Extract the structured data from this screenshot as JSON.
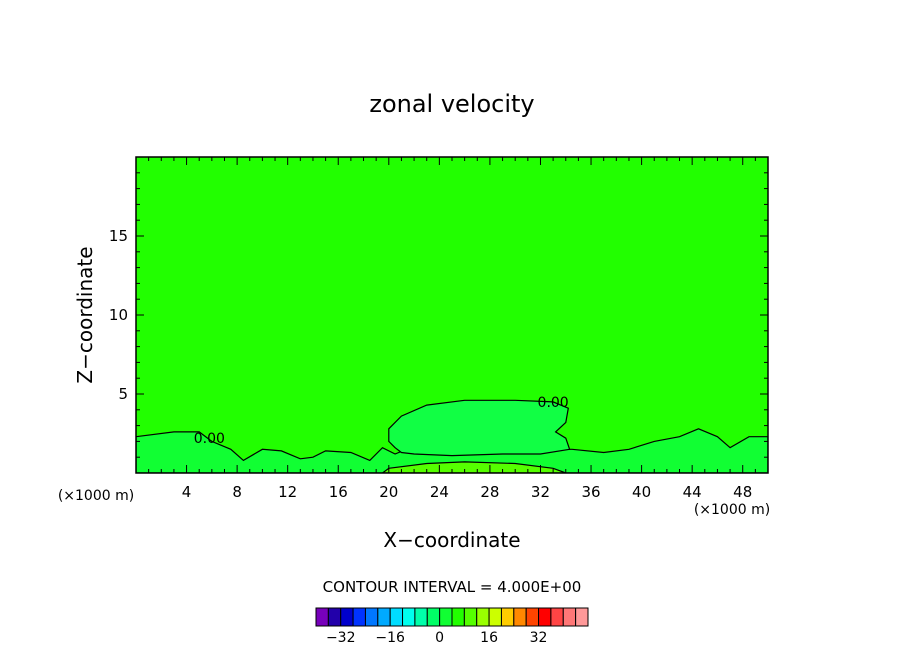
{
  "chart_data": {
    "type": "contour",
    "title": "zonal velocity",
    "xlabel": "X−coordinate",
    "ylabel": "Z−coordinate",
    "x_unit_left": "(×1000 m)",
    "x_unit_right": "(×1000 m)",
    "xlim": [
      0,
      50
    ],
    "ylim": [
      0,
      20
    ],
    "x_ticks": [
      4,
      8,
      12,
      16,
      20,
      24,
      28,
      32,
      36,
      40,
      44,
      48
    ],
    "y_ticks": [
      5,
      10,
      15
    ],
    "background_color": "#22ff00",
    "contour_labels": [
      {
        "text": "0.00",
        "x": 33.0,
        "z": 4.5
      },
      {
        "text": "0.00",
        "x": 5.8,
        "z": 2.2
      }
    ],
    "regions": [
      {
        "name": "near-zero-low-level",
        "color": "#11ff33",
        "points": [
          [
            0,
            0
          ],
          [
            0,
            2.3
          ],
          [
            3,
            2.6
          ],
          [
            5,
            2.6
          ],
          [
            6,
            2.0
          ],
          [
            7.5,
            1.5
          ],
          [
            8.5,
            0.8
          ],
          [
            10,
            1.5
          ],
          [
            11.5,
            1.4
          ],
          [
            13,
            0.9
          ],
          [
            14,
            1.0
          ],
          [
            15,
            1.4
          ],
          [
            17,
            1.3
          ],
          [
            18.5,
            0.8
          ],
          [
            19.5,
            1.6
          ],
          [
            20.5,
            1.2
          ],
          [
            22,
            1.7
          ],
          [
            25,
            1.5
          ],
          [
            29,
            1.8
          ],
          [
            32,
            1.7
          ],
          [
            33,
            1.5
          ],
          [
            34.5,
            1.5
          ],
          [
            37,
            1.3
          ],
          [
            39,
            1.5
          ],
          [
            41,
            2.0
          ],
          [
            43,
            2.3
          ],
          [
            44.5,
            2.8
          ],
          [
            46,
            2.3
          ],
          [
            47,
            1.6
          ],
          [
            48.5,
            2.3
          ],
          [
            50,
            2.3
          ],
          [
            50,
            0
          ]
        ]
      },
      {
        "name": "weak-negative-bubble",
        "color": "#11ff44",
        "points": [
          [
            20.5,
            1.6
          ],
          [
            20,
            2.0
          ],
          [
            20,
            2.8
          ],
          [
            21,
            3.6
          ],
          [
            23,
            4.3
          ],
          [
            26,
            4.6
          ],
          [
            30,
            4.6
          ],
          [
            33,
            4.5
          ],
          [
            34.2,
            4.1
          ],
          [
            34,
            3.2
          ],
          [
            33.2,
            2.6
          ],
          [
            34.0,
            2.2
          ],
          [
            34.3,
            1.5
          ],
          [
            32,
            1.2
          ],
          [
            29,
            1.2
          ],
          [
            25,
            1.1
          ],
          [
            22,
            1.2
          ],
          [
            21,
            1.3
          ]
        ]
      },
      {
        "name": "weak-positive-surface",
        "color": "#55ff00",
        "points": [
          [
            19.5,
            0
          ],
          [
            20,
            0.3
          ],
          [
            23,
            0.6
          ],
          [
            26,
            0.7
          ],
          [
            30,
            0.6
          ],
          [
            33,
            0.3
          ],
          [
            34,
            0
          ]
        ]
      }
    ],
    "colorbar": {
      "title": "CONTOUR INTERVAL = 4.000E+00",
      "colors": [
        "#7700bb",
        "#2200aa",
        "#0000cc",
        "#0033ff",
        "#0077ff",
        "#00aaff",
        "#00ddff",
        "#00ffee",
        "#00ffaa",
        "#00ff66",
        "#11ff33",
        "#22ff00",
        "#55ff00",
        "#99ff00",
        "#ccff00",
        "#ffcc00",
        "#ff8800",
        "#ff4400",
        "#ff0000",
        "#ff4444",
        "#ff7777",
        "#ff9999"
      ],
      "ticks": [
        "−32",
        "−16",
        "0",
        "16",
        "32"
      ]
    }
  }
}
